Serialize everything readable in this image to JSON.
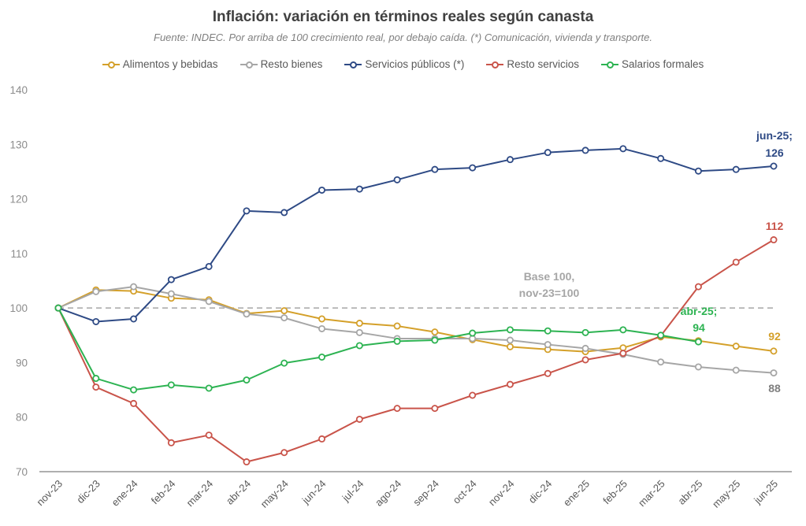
{
  "chart_data": {
    "type": "line",
    "title": "Inflación: variación en términos reales según canasta",
    "subtitle": "Fuente: INDEC. Por arriba de 100 crecimiento real, por debajo caída. (*) Comunicación, vivienda y transporte.",
    "xlabel": "",
    "ylabel": "",
    "ylim": [
      70,
      140
    ],
    "yticks": [
      70,
      80,
      90,
      100,
      110,
      120,
      130,
      140
    ],
    "grid": false,
    "legend_position": "top",
    "categories": [
      "nov-23",
      "dic-23",
      "ene-24",
      "feb-24",
      "mar-24",
      "abr-24",
      "may-24",
      "jun-24",
      "jul-24",
      "ago-24",
      "sep-24",
      "oct-24",
      "nov-24",
      "dic-24",
      "ene-25",
      "feb-25",
      "mar-25",
      "abr-25",
      "may-25",
      "jun-25"
    ],
    "series": [
      {
        "name": "Alimentos y bebidas",
        "color": "#d4a02a",
        "values": [
          100,
          103.3,
          103.1,
          101.8,
          101.5,
          99.0,
          99.5,
          98.0,
          97.2,
          96.7,
          95.6,
          94.2,
          92.9,
          92.4,
          92.0,
          92.7,
          94.7,
          94.0,
          93.0,
          92.1
        ]
      },
      {
        "name": "Resto bienes",
        "color": "#a6a6a6",
        "values": [
          100,
          103.0,
          103.9,
          102.6,
          101.2,
          98.9,
          98.2,
          96.2,
          95.5,
          94.4,
          94.4,
          94.4,
          94.1,
          93.3,
          92.6,
          91.5,
          90.1,
          89.2,
          88.6,
          88.1
        ]
      },
      {
        "name": "Servicios públicos (*)",
        "color": "#2e4a85",
        "values": [
          100,
          97.5,
          98.0,
          105.2,
          107.6,
          117.8,
          117.5,
          121.6,
          121.8,
          123.5,
          125.4,
          125.7,
          127.2,
          128.5,
          128.9,
          129.2,
          127.4,
          125.1,
          125.4,
          126.0
        ]
      },
      {
        "name": "Resto servicios",
        "color": "#c9544a",
        "values": [
          100,
          85.5,
          82.5,
          75.3,
          76.7,
          71.8,
          73.5,
          76.0,
          79.6,
          81.6,
          81.6,
          84.0,
          86.0,
          88.0,
          90.5,
          91.7,
          94.9,
          103.9,
          108.4,
          112.5
        ]
      },
      {
        "name": "Salarios formales",
        "color": "#2db352",
        "values": [
          100,
          87.1,
          85.0,
          85.9,
          85.3,
          86.8,
          89.9,
          91.0,
          93.1,
          93.9,
          94.1,
          95.4,
          96.0,
          95.8,
          95.5,
          96.0,
          95.0,
          93.8,
          null,
          null
        ]
      }
    ],
    "reference_line": {
      "value": 100,
      "label_line1": "Base 100,",
      "label_line2": "nov-23=100",
      "color": "#a6a6a6"
    },
    "annotations": [
      {
        "series": "Servicios públicos (*)",
        "line1": "jun-25;",
        "line2": "126",
        "color": "#2e4a85"
      },
      {
        "series": "Resto servicios",
        "line1": "",
        "line2": "112",
        "color": "#c9544a"
      },
      {
        "series": "Salarios formales",
        "line1": "abr-25;",
        "line2": "94",
        "color": "#2db352"
      },
      {
        "series": "Alimentos y bebidas",
        "line1": "",
        "line2": "92",
        "color": "#d4a02a"
      },
      {
        "series": "Resto bienes",
        "line1": "",
        "line2": "88",
        "color": "#7f7f7f"
      }
    ]
  }
}
